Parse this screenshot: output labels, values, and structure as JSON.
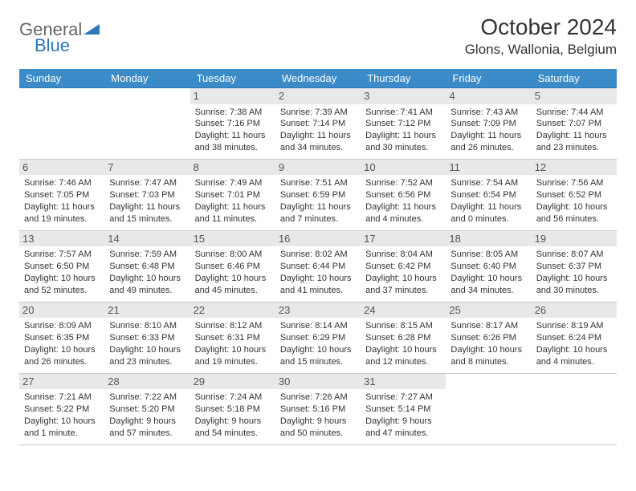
{
  "logo": {
    "part1": "General",
    "part2": "Blue"
  },
  "title": "October 2024",
  "location": "Glons, Wallonia, Belgium",
  "colors": {
    "header_bg": "#3b8bc9",
    "header_text": "#ffffff",
    "row_border": "#2e77b8",
    "daynum_bg": "#e8e8e8",
    "logo_blue": "#2e77b8",
    "text": "#333333"
  },
  "font": {
    "day_num_size": 13,
    "cell_size": 11,
    "title_size": 28,
    "location_size": 17
  },
  "weekdays": [
    "Sunday",
    "Monday",
    "Tuesday",
    "Wednesday",
    "Thursday",
    "Friday",
    "Saturday"
  ],
  "weeks": [
    [
      null,
      null,
      {
        "n": "1",
        "sr": "Sunrise: 7:38 AM",
        "ss": "Sunset: 7:16 PM",
        "d1": "Daylight: 11 hours",
        "d2": "and 38 minutes."
      },
      {
        "n": "2",
        "sr": "Sunrise: 7:39 AM",
        "ss": "Sunset: 7:14 PM",
        "d1": "Daylight: 11 hours",
        "d2": "and 34 minutes."
      },
      {
        "n": "3",
        "sr": "Sunrise: 7:41 AM",
        "ss": "Sunset: 7:12 PM",
        "d1": "Daylight: 11 hours",
        "d2": "and 30 minutes."
      },
      {
        "n": "4",
        "sr": "Sunrise: 7:43 AM",
        "ss": "Sunset: 7:09 PM",
        "d1": "Daylight: 11 hours",
        "d2": "and 26 minutes."
      },
      {
        "n": "5",
        "sr": "Sunrise: 7:44 AM",
        "ss": "Sunset: 7:07 PM",
        "d1": "Daylight: 11 hours",
        "d2": "and 23 minutes."
      }
    ],
    [
      {
        "n": "6",
        "sr": "Sunrise: 7:46 AM",
        "ss": "Sunset: 7:05 PM",
        "d1": "Daylight: 11 hours",
        "d2": "and 19 minutes."
      },
      {
        "n": "7",
        "sr": "Sunrise: 7:47 AM",
        "ss": "Sunset: 7:03 PM",
        "d1": "Daylight: 11 hours",
        "d2": "and 15 minutes."
      },
      {
        "n": "8",
        "sr": "Sunrise: 7:49 AM",
        "ss": "Sunset: 7:01 PM",
        "d1": "Daylight: 11 hours",
        "d2": "and 11 minutes."
      },
      {
        "n": "9",
        "sr": "Sunrise: 7:51 AM",
        "ss": "Sunset: 6:59 PM",
        "d1": "Daylight: 11 hours",
        "d2": "and 7 minutes."
      },
      {
        "n": "10",
        "sr": "Sunrise: 7:52 AM",
        "ss": "Sunset: 6:56 PM",
        "d1": "Daylight: 11 hours",
        "d2": "and 4 minutes."
      },
      {
        "n": "11",
        "sr": "Sunrise: 7:54 AM",
        "ss": "Sunset: 6:54 PM",
        "d1": "Daylight: 11 hours",
        "d2": "and 0 minutes."
      },
      {
        "n": "12",
        "sr": "Sunrise: 7:56 AM",
        "ss": "Sunset: 6:52 PM",
        "d1": "Daylight: 10 hours",
        "d2": "and 56 minutes."
      }
    ],
    [
      {
        "n": "13",
        "sr": "Sunrise: 7:57 AM",
        "ss": "Sunset: 6:50 PM",
        "d1": "Daylight: 10 hours",
        "d2": "and 52 minutes."
      },
      {
        "n": "14",
        "sr": "Sunrise: 7:59 AM",
        "ss": "Sunset: 6:48 PM",
        "d1": "Daylight: 10 hours",
        "d2": "and 49 minutes."
      },
      {
        "n": "15",
        "sr": "Sunrise: 8:00 AM",
        "ss": "Sunset: 6:46 PM",
        "d1": "Daylight: 10 hours",
        "d2": "and 45 minutes."
      },
      {
        "n": "16",
        "sr": "Sunrise: 8:02 AM",
        "ss": "Sunset: 6:44 PM",
        "d1": "Daylight: 10 hours",
        "d2": "and 41 minutes."
      },
      {
        "n": "17",
        "sr": "Sunrise: 8:04 AM",
        "ss": "Sunset: 6:42 PM",
        "d1": "Daylight: 10 hours",
        "d2": "and 37 minutes."
      },
      {
        "n": "18",
        "sr": "Sunrise: 8:05 AM",
        "ss": "Sunset: 6:40 PM",
        "d1": "Daylight: 10 hours",
        "d2": "and 34 minutes."
      },
      {
        "n": "19",
        "sr": "Sunrise: 8:07 AM",
        "ss": "Sunset: 6:37 PM",
        "d1": "Daylight: 10 hours",
        "d2": "and 30 minutes."
      }
    ],
    [
      {
        "n": "20",
        "sr": "Sunrise: 8:09 AM",
        "ss": "Sunset: 6:35 PM",
        "d1": "Daylight: 10 hours",
        "d2": "and 26 minutes."
      },
      {
        "n": "21",
        "sr": "Sunrise: 8:10 AM",
        "ss": "Sunset: 6:33 PM",
        "d1": "Daylight: 10 hours",
        "d2": "and 23 minutes."
      },
      {
        "n": "22",
        "sr": "Sunrise: 8:12 AM",
        "ss": "Sunset: 6:31 PM",
        "d1": "Daylight: 10 hours",
        "d2": "and 19 minutes."
      },
      {
        "n": "23",
        "sr": "Sunrise: 8:14 AM",
        "ss": "Sunset: 6:29 PM",
        "d1": "Daylight: 10 hours",
        "d2": "and 15 minutes."
      },
      {
        "n": "24",
        "sr": "Sunrise: 8:15 AM",
        "ss": "Sunset: 6:28 PM",
        "d1": "Daylight: 10 hours",
        "d2": "and 12 minutes."
      },
      {
        "n": "25",
        "sr": "Sunrise: 8:17 AM",
        "ss": "Sunset: 6:26 PM",
        "d1": "Daylight: 10 hours",
        "d2": "and 8 minutes."
      },
      {
        "n": "26",
        "sr": "Sunrise: 8:19 AM",
        "ss": "Sunset: 6:24 PM",
        "d1": "Daylight: 10 hours",
        "d2": "and 4 minutes."
      }
    ],
    [
      {
        "n": "27",
        "sr": "Sunrise: 7:21 AM",
        "ss": "Sunset: 5:22 PM",
        "d1": "Daylight: 10 hours",
        "d2": "and 1 minute."
      },
      {
        "n": "28",
        "sr": "Sunrise: 7:22 AM",
        "ss": "Sunset: 5:20 PM",
        "d1": "Daylight: 9 hours",
        "d2": "and 57 minutes."
      },
      {
        "n": "29",
        "sr": "Sunrise: 7:24 AM",
        "ss": "Sunset: 5:18 PM",
        "d1": "Daylight: 9 hours",
        "d2": "and 54 minutes."
      },
      {
        "n": "30",
        "sr": "Sunrise: 7:26 AM",
        "ss": "Sunset: 5:16 PM",
        "d1": "Daylight: 9 hours",
        "d2": "and 50 minutes."
      },
      {
        "n": "31",
        "sr": "Sunrise: 7:27 AM",
        "ss": "Sunset: 5:14 PM",
        "d1": "Daylight: 9 hours",
        "d2": "and 47 minutes."
      },
      null,
      null
    ]
  ]
}
